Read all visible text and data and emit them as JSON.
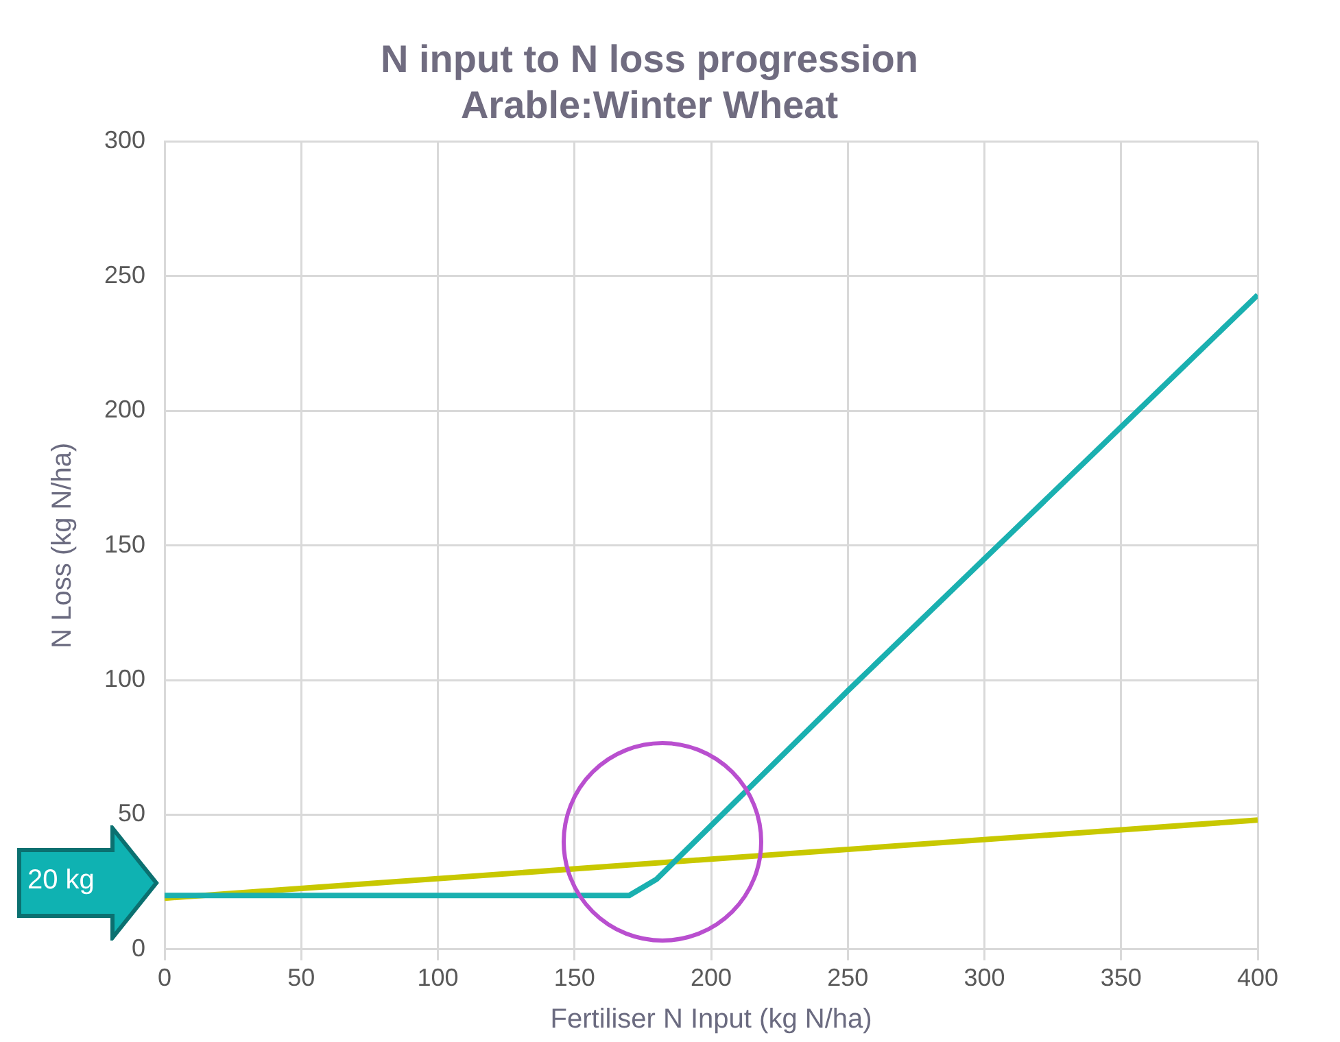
{
  "chart_data": {
    "type": "line",
    "title": [
      "N input to N loss progression",
      "Arable:Winter Wheat"
    ],
    "xlabel": "Fertiliser N Input (kg N/ha)",
    "ylabel": "N Loss (kg N/ha)",
    "xlim": [
      0,
      400
    ],
    "xticks": [
      0,
      50,
      100,
      150,
      200,
      250,
      300,
      350,
      400
    ],
    "ylim": [
      0,
      300
    ],
    "yticks": [
      0,
      50,
      100,
      150,
      200,
      250,
      300
    ],
    "grid": true,
    "legend": false,
    "marker": "none",
    "line_style": "solid",
    "annotations": [
      "20 kg"
    ],
    "series": [
      {
        "color": "#1ab0b0",
        "x": [
          0,
          170,
          180,
          190,
          200,
          250,
          300,
          350,
          400
        ],
        "values": [
          20,
          20,
          26,
          36,
          46,
          96,
          145,
          194,
          243
        ]
      },
      {
        "color": "#c8c800",
        "x": [
          0,
          400
        ],
        "values": [
          19,
          48
        ]
      }
    ]
  }
}
